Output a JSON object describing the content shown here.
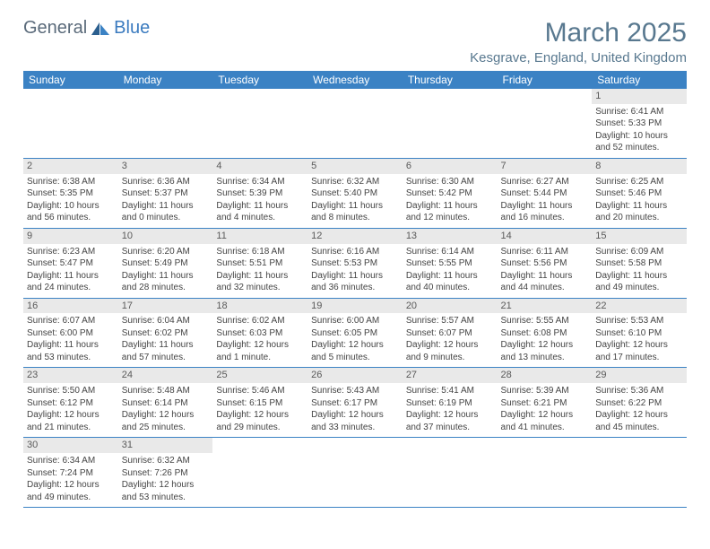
{
  "header": {
    "logo_part1": "General",
    "logo_part2": "Blue",
    "month_title": "March 2025",
    "location": "Kesgrave, England, United Kingdom"
  },
  "colors": {
    "header_bar": "#3b82c4",
    "header_text": "#ffffff",
    "title_color": "#58788f",
    "daynum_bg": "#e9e9e9",
    "cell_border": "#3b82c4",
    "body_text": "#444444"
  },
  "weekdays": [
    "Sunday",
    "Monday",
    "Tuesday",
    "Wednesday",
    "Thursday",
    "Friday",
    "Saturday"
  ],
  "weeks": [
    [
      null,
      null,
      null,
      null,
      null,
      null,
      {
        "day": "1",
        "sunrise": "Sunrise: 6:41 AM",
        "sunset": "Sunset: 5:33 PM",
        "daylight1": "Daylight: 10 hours",
        "daylight2": "and 52 minutes."
      }
    ],
    [
      {
        "day": "2",
        "sunrise": "Sunrise: 6:38 AM",
        "sunset": "Sunset: 5:35 PM",
        "daylight1": "Daylight: 10 hours",
        "daylight2": "and 56 minutes."
      },
      {
        "day": "3",
        "sunrise": "Sunrise: 6:36 AM",
        "sunset": "Sunset: 5:37 PM",
        "daylight1": "Daylight: 11 hours",
        "daylight2": "and 0 minutes."
      },
      {
        "day": "4",
        "sunrise": "Sunrise: 6:34 AM",
        "sunset": "Sunset: 5:39 PM",
        "daylight1": "Daylight: 11 hours",
        "daylight2": "and 4 minutes."
      },
      {
        "day": "5",
        "sunrise": "Sunrise: 6:32 AM",
        "sunset": "Sunset: 5:40 PM",
        "daylight1": "Daylight: 11 hours",
        "daylight2": "and 8 minutes."
      },
      {
        "day": "6",
        "sunrise": "Sunrise: 6:30 AM",
        "sunset": "Sunset: 5:42 PM",
        "daylight1": "Daylight: 11 hours",
        "daylight2": "and 12 minutes."
      },
      {
        "day": "7",
        "sunrise": "Sunrise: 6:27 AM",
        "sunset": "Sunset: 5:44 PM",
        "daylight1": "Daylight: 11 hours",
        "daylight2": "and 16 minutes."
      },
      {
        "day": "8",
        "sunrise": "Sunrise: 6:25 AM",
        "sunset": "Sunset: 5:46 PM",
        "daylight1": "Daylight: 11 hours",
        "daylight2": "and 20 minutes."
      }
    ],
    [
      {
        "day": "9",
        "sunrise": "Sunrise: 6:23 AM",
        "sunset": "Sunset: 5:47 PM",
        "daylight1": "Daylight: 11 hours",
        "daylight2": "and 24 minutes."
      },
      {
        "day": "10",
        "sunrise": "Sunrise: 6:20 AM",
        "sunset": "Sunset: 5:49 PM",
        "daylight1": "Daylight: 11 hours",
        "daylight2": "and 28 minutes."
      },
      {
        "day": "11",
        "sunrise": "Sunrise: 6:18 AM",
        "sunset": "Sunset: 5:51 PM",
        "daylight1": "Daylight: 11 hours",
        "daylight2": "and 32 minutes."
      },
      {
        "day": "12",
        "sunrise": "Sunrise: 6:16 AM",
        "sunset": "Sunset: 5:53 PM",
        "daylight1": "Daylight: 11 hours",
        "daylight2": "and 36 minutes."
      },
      {
        "day": "13",
        "sunrise": "Sunrise: 6:14 AM",
        "sunset": "Sunset: 5:55 PM",
        "daylight1": "Daylight: 11 hours",
        "daylight2": "and 40 minutes."
      },
      {
        "day": "14",
        "sunrise": "Sunrise: 6:11 AM",
        "sunset": "Sunset: 5:56 PM",
        "daylight1": "Daylight: 11 hours",
        "daylight2": "and 44 minutes."
      },
      {
        "day": "15",
        "sunrise": "Sunrise: 6:09 AM",
        "sunset": "Sunset: 5:58 PM",
        "daylight1": "Daylight: 11 hours",
        "daylight2": "and 49 minutes."
      }
    ],
    [
      {
        "day": "16",
        "sunrise": "Sunrise: 6:07 AM",
        "sunset": "Sunset: 6:00 PM",
        "daylight1": "Daylight: 11 hours",
        "daylight2": "and 53 minutes."
      },
      {
        "day": "17",
        "sunrise": "Sunrise: 6:04 AM",
        "sunset": "Sunset: 6:02 PM",
        "daylight1": "Daylight: 11 hours",
        "daylight2": "and 57 minutes."
      },
      {
        "day": "18",
        "sunrise": "Sunrise: 6:02 AM",
        "sunset": "Sunset: 6:03 PM",
        "daylight1": "Daylight: 12 hours",
        "daylight2": "and 1 minute."
      },
      {
        "day": "19",
        "sunrise": "Sunrise: 6:00 AM",
        "sunset": "Sunset: 6:05 PM",
        "daylight1": "Daylight: 12 hours",
        "daylight2": "and 5 minutes."
      },
      {
        "day": "20",
        "sunrise": "Sunrise: 5:57 AM",
        "sunset": "Sunset: 6:07 PM",
        "daylight1": "Daylight: 12 hours",
        "daylight2": "and 9 minutes."
      },
      {
        "day": "21",
        "sunrise": "Sunrise: 5:55 AM",
        "sunset": "Sunset: 6:08 PM",
        "daylight1": "Daylight: 12 hours",
        "daylight2": "and 13 minutes."
      },
      {
        "day": "22",
        "sunrise": "Sunrise: 5:53 AM",
        "sunset": "Sunset: 6:10 PM",
        "daylight1": "Daylight: 12 hours",
        "daylight2": "and 17 minutes."
      }
    ],
    [
      {
        "day": "23",
        "sunrise": "Sunrise: 5:50 AM",
        "sunset": "Sunset: 6:12 PM",
        "daylight1": "Daylight: 12 hours",
        "daylight2": "and 21 minutes."
      },
      {
        "day": "24",
        "sunrise": "Sunrise: 5:48 AM",
        "sunset": "Sunset: 6:14 PM",
        "daylight1": "Daylight: 12 hours",
        "daylight2": "and 25 minutes."
      },
      {
        "day": "25",
        "sunrise": "Sunrise: 5:46 AM",
        "sunset": "Sunset: 6:15 PM",
        "daylight1": "Daylight: 12 hours",
        "daylight2": "and 29 minutes."
      },
      {
        "day": "26",
        "sunrise": "Sunrise: 5:43 AM",
        "sunset": "Sunset: 6:17 PM",
        "daylight1": "Daylight: 12 hours",
        "daylight2": "and 33 minutes."
      },
      {
        "day": "27",
        "sunrise": "Sunrise: 5:41 AM",
        "sunset": "Sunset: 6:19 PM",
        "daylight1": "Daylight: 12 hours",
        "daylight2": "and 37 minutes."
      },
      {
        "day": "28",
        "sunrise": "Sunrise: 5:39 AM",
        "sunset": "Sunset: 6:21 PM",
        "daylight1": "Daylight: 12 hours",
        "daylight2": "and 41 minutes."
      },
      {
        "day": "29",
        "sunrise": "Sunrise: 5:36 AM",
        "sunset": "Sunset: 6:22 PM",
        "daylight1": "Daylight: 12 hours",
        "daylight2": "and 45 minutes."
      }
    ],
    [
      {
        "day": "30",
        "sunrise": "Sunrise: 6:34 AM",
        "sunset": "Sunset: 7:24 PM",
        "daylight1": "Daylight: 12 hours",
        "daylight2": "and 49 minutes."
      },
      {
        "day": "31",
        "sunrise": "Sunrise: 6:32 AM",
        "sunset": "Sunset: 7:26 PM",
        "daylight1": "Daylight: 12 hours",
        "daylight2": "and 53 minutes."
      },
      null,
      null,
      null,
      null,
      null
    ]
  ]
}
